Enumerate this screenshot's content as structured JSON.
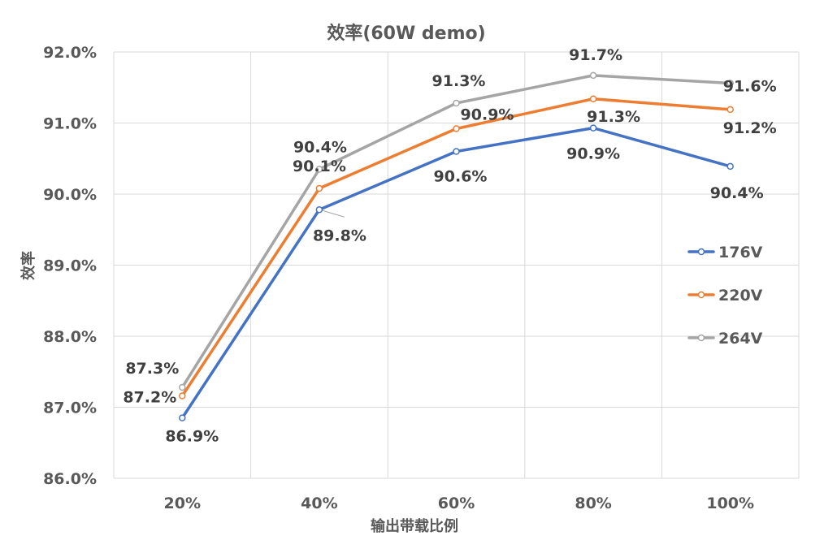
{
  "chart_data": {
    "type": "line",
    "title": "效率(60W demo)",
    "xlabel": "输出带载比例",
    "ylabel": "效率",
    "categories": [
      "20%",
      "40%",
      "60%",
      "80%",
      "100%"
    ],
    "y_tick_labels": [
      "92.0%",
      "91.0%",
      "90.0%",
      "89.0%",
      "88.0%",
      "87.0%",
      "86.0%"
    ],
    "ylim": [
      86.0,
      92.0
    ],
    "grid": true,
    "legend_position": "right",
    "series": [
      {
        "name": "176V",
        "color": "#4472C4",
        "values": [
          86.85,
          89.78,
          90.6,
          90.93,
          90.39
        ],
        "labels": [
          "86.9%",
          "89.8%",
          "90.6%",
          "90.9%",
          "90.4%"
        ]
      },
      {
        "name": "220V",
        "color": "#ED7D31",
        "values": [
          87.16,
          90.08,
          90.92,
          91.34,
          91.19
        ],
        "labels": [
          "87.2%",
          "90.1%",
          "90.9%",
          "91.3%",
          "91.2%"
        ]
      },
      {
        "name": "264V",
        "color": "#A5A5A5",
        "values": [
          87.28,
          90.35,
          91.28,
          91.67,
          91.56
        ],
        "labels": [
          "87.3%",
          "90.4%",
          "91.3%",
          "91.7%",
          "91.6%"
        ]
      }
    ]
  }
}
